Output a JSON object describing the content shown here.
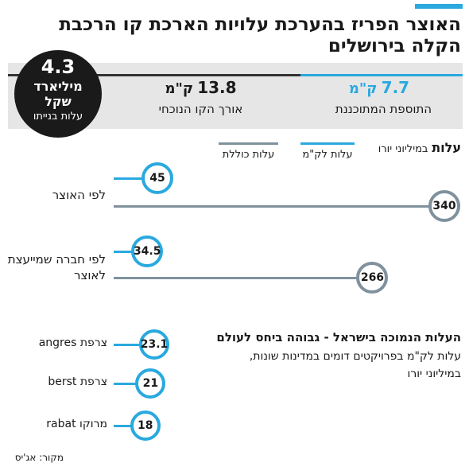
{
  "title": "האוצר הפריז בהערכת עלויות הארכת קו הרכבת הקלה בירושלים",
  "info": {
    "addition_value": "7.7",
    "addition_unit": "ק\"מ",
    "addition_label": "התוספת המתוכננת",
    "current_value": "13.8",
    "current_unit": "ק\"מ",
    "current_label": "אורך הקו הנוכחי",
    "cost_value": "4.3",
    "cost_unit_1": "מיליארד",
    "cost_unit_2": "שקל",
    "cost_label": "עלות בנייתו"
  },
  "section1": {
    "title": "עלות",
    "subtitle": "במיליוני יורו",
    "legend_blue": "עלות לק\"מ",
    "legend_gray": "עלות כוללת"
  },
  "section2": {
    "title": "העלות הנמוכה בישראל - גבוהה ביחס לעולם",
    "subtitle_1": "עלות לק\"מ בפרויקטים דומים במדינות שונות,",
    "subtitle_2": "במיליוני יורו"
  },
  "source": "מקור: אג'יס",
  "colors": {
    "blue": "#29a9df",
    "gray": "#7f919d",
    "dark": "#1a1a1a"
  },
  "chart_data": [
    {
      "type": "bar",
      "title": "עלות",
      "subtitle": "במיליוני יורו",
      "categories": [
        "לפי האוצר",
        "לפי חברה שמייעצת לאוצר"
      ],
      "series": [
        {
          "name": "עלות לק\"מ",
          "values": [
            45,
            34.5
          ],
          "labels": [
            "45",
            "34.5"
          ]
        },
        {
          "name": "עלות כוללת",
          "values": [
            340,
            266
          ],
          "labels": [
            "340",
            "266"
          ]
        }
      ]
    },
    {
      "type": "bar",
      "title": "העלות הנמוכה בישראל - גבוהה ביחס לעולם",
      "subtitle": "עלות לק\"מ בפרויקטים דומים במדינות שונות, במיליוני יורו",
      "categories": [
        {
          "country": "צרפת",
          "project": "angres"
        },
        {
          "country": "צרפת",
          "project": "berst"
        },
        {
          "country": "מרוקו",
          "project": "rabat"
        }
      ],
      "values": [
        23.1,
        21,
        18
      ],
      "labels": [
        "23.1",
        "21",
        "18"
      ]
    }
  ]
}
